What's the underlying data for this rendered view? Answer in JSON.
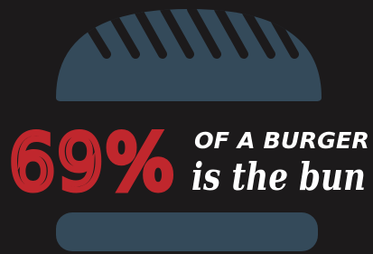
{
  "stat": "69%",
  "line1": "OF A BURGER",
  "line2": "is the bun"
}
